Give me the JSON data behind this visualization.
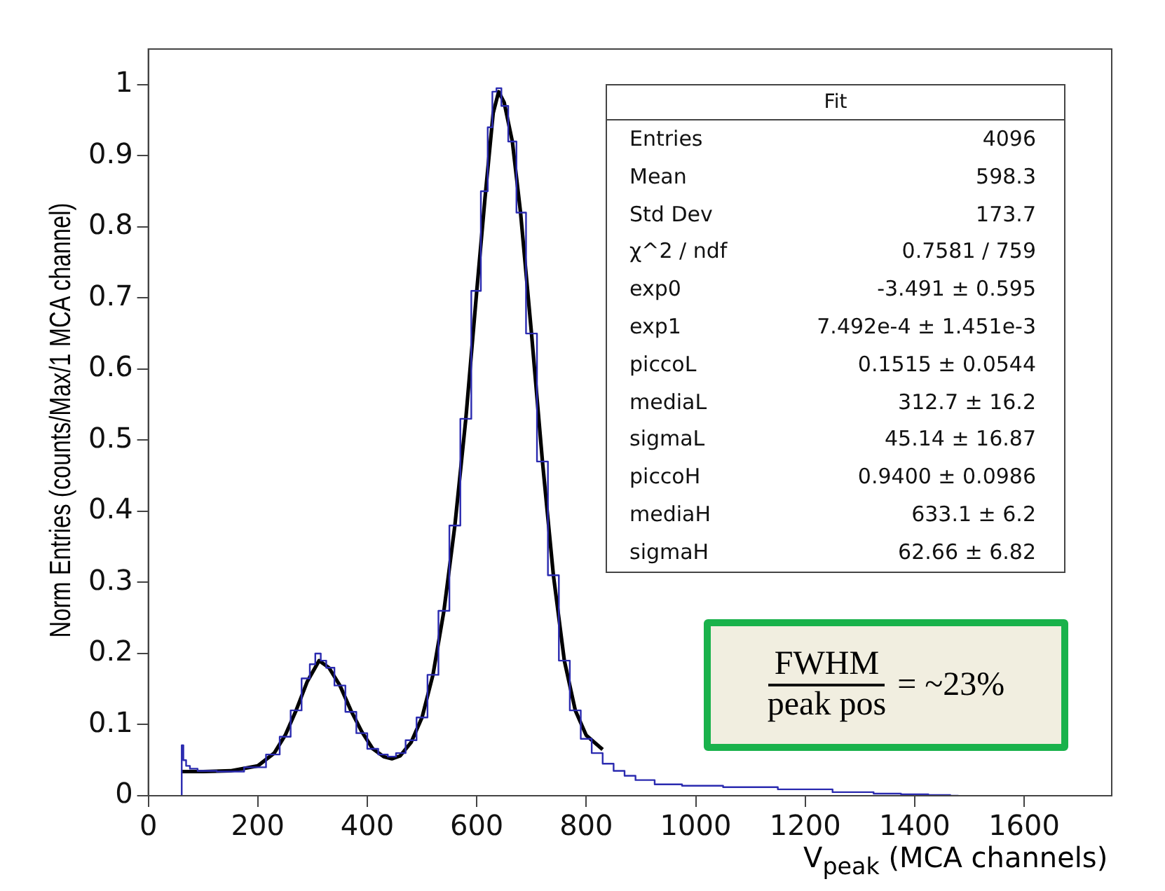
{
  "chart_data": {
    "type": "line",
    "xlabel": "V$_{peak}$  (MCA channels)",
    "ylabel": "Norm Entries (counts/Max/1 MCA channel)",
    "xlim": [
      0,
      1760
    ],
    "xticks": [
      0,
      200,
      400,
      600,
      800,
      1000,
      1200,
      1400,
      1600
    ],
    "ylim": [
      0,
      1.05
    ],
    "yticks": [
      0,
      0.1,
      0.2,
      0.3,
      0.4,
      0.5,
      0.6,
      0.7,
      0.8,
      0.9,
      1
    ],
    "grid": false,
    "legend": false,
    "marker": "none",
    "series": [
      {
        "type": "step",
        "color": "#2b2bb0",
        "x": [
          60,
          62,
          66,
          72,
          80,
          100,
          150,
          200,
          230,
          250,
          270,
          290,
          300,
          310,
          320,
          330,
          350,
          370,
          390,
          410,
          430,
          445,
          460,
          480,
          500,
          520,
          540,
          560,
          580,
          600,
          615,
          625,
          632,
          640,
          650,
          665,
          680,
          700,
          720,
          740,
          760,
          780,
          800,
          820,
          840,
          860,
          880,
          900,
          950,
          1000,
          1100,
          1200,
          1300,
          1350,
          1400,
          1450,
          1480
        ],
        "values": [
          0,
          0.071,
          0.05,
          0.042,
          0.038,
          0.035,
          0.034,
          0.04,
          0.058,
          0.083,
          0.12,
          0.165,
          0.185,
          0.2,
          0.19,
          0.18,
          0.155,
          0.118,
          0.088,
          0.066,
          0.058,
          0.055,
          0.06,
          0.078,
          0.11,
          0.17,
          0.26,
          0.38,
          0.53,
          0.71,
          0.85,
          0.94,
          0.99,
          0.995,
          0.97,
          0.92,
          0.82,
          0.65,
          0.47,
          0.31,
          0.19,
          0.12,
          0.08,
          0.06,
          0.045,
          0.035,
          0.028,
          0.022,
          0.016,
          0.014,
          0.012,
          0.009,
          0.005,
          0.003,
          0.002,
          0.001,
          0
        ]
      },
      {
        "type": "line",
        "color": "#000000",
        "x": [
          60,
          100,
          150,
          200,
          230,
          250,
          270,
          290,
          312,
          330,
          350,
          370,
          390,
          410,
          430,
          445,
          460,
          480,
          500,
          520,
          540,
          560,
          580,
          600,
          615,
          630,
          640,
          650,
          665,
          680,
          700,
          720,
          740,
          760,
          780,
          800,
          830
        ],
        "values": [
          0.034,
          0.034,
          0.035,
          0.042,
          0.06,
          0.085,
          0.12,
          0.16,
          0.19,
          0.18,
          0.155,
          0.12,
          0.09,
          0.066,
          0.055,
          0.052,
          0.056,
          0.075,
          0.11,
          0.17,
          0.26,
          0.38,
          0.53,
          0.71,
          0.84,
          0.96,
          0.99,
          0.975,
          0.92,
          0.82,
          0.65,
          0.47,
          0.31,
          0.19,
          0.12,
          0.085,
          0.065
        ]
      }
    ],
    "annotations": [
      "Fit",
      "Entries",
      "4096",
      "Mean",
      "598.3",
      "Std Dev",
      "173.7",
      "χ^2 / ndf",
      "0.7581 / 759",
      "exp0",
      "-3.491 ± 0.595",
      "exp1",
      "7.492e-4 ± 1.451e-3",
      "piccoL",
      "0.1515 ± 0.0544",
      "mediaL",
      "312.7 ± 16.2",
      "sigmaL",
      "45.14 ± 16.87",
      "piccoH",
      "0.9400 ± 0.0986",
      "mediaH",
      "633.1 ± 6.2",
      "sigmaH",
      "62.66 ± 6.82",
      "FWHM",
      "peak pos",
      "= ~23%"
    ]
  }
}
